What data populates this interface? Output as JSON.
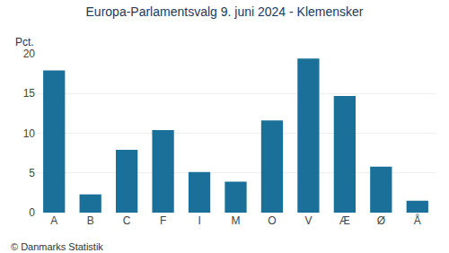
{
  "chart_data": {
    "type": "bar",
    "title": "Europa-Parlamentsvalg 9. juni 2024 - Klemensker",
    "categories": [
      "A",
      "B",
      "C",
      "F",
      "I",
      "M",
      "O",
      "V",
      "Æ",
      "Ø",
      "Å"
    ],
    "values": [
      17.9,
      2.3,
      7.9,
      10.4,
      5.1,
      3.9,
      11.6,
      19.4,
      14.7,
      5.8,
      1.5
    ],
    "color": "#1a7098",
    "ylabel": "Pct.",
    "ylim": [
      0,
      20
    ],
    "yticks": [
      0,
      5,
      10,
      15,
      20
    ],
    "grid": true,
    "annotations": [
      "© Danmarks Statistik"
    ]
  }
}
